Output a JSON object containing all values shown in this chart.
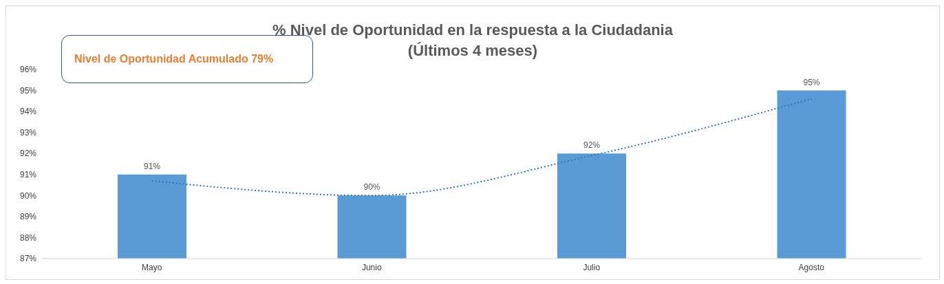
{
  "chart_data": {
    "type": "bar",
    "title": "% Nivel de Oportunidad en la respuesta a la Ciudadania",
    "subtitle": "(Últimos 4 meses)",
    "annotations": [
      "Nivel de Oportunidad Acumulado 79%"
    ],
    "categories": [
      "Mayo",
      "Junio",
      "Julio",
      "Agosto"
    ],
    "series": [
      {
        "color": "#5b9bd5",
        "values": [
          91,
          90,
          92,
          95
        ],
        "value_labels": [
          "91%",
          "90%",
          "92%",
          "95%"
        ]
      },
      {
        "type": "line",
        "color": "#2e75b6",
        "x": [
          "Mayo",
          "Junio",
          "Julio",
          "Agosto"
        ],
        "values": [
          90.7,
          90.0,
          91.9,
          94.6
        ],
        "line_style": "dotted",
        "marker": "none"
      }
    ],
    "ylim": [
      87,
      96
    ],
    "yticks": [
      {
        "value": 87,
        "label": "87%"
      },
      {
        "value": 88,
        "label": "88%"
      },
      {
        "value": 89,
        "label": "89%"
      },
      {
        "value": 90,
        "label": "90%"
      },
      {
        "value": 91,
        "label": "91%"
      },
      {
        "value": 92,
        "label": "92%"
      },
      {
        "value": 93,
        "label": "93%"
      },
      {
        "value": 94,
        "label": "94%"
      },
      {
        "value": 95,
        "label": "95%"
      },
      {
        "value": 96,
        "label": "96%"
      }
    ],
    "grid": false,
    "legend": false
  }
}
